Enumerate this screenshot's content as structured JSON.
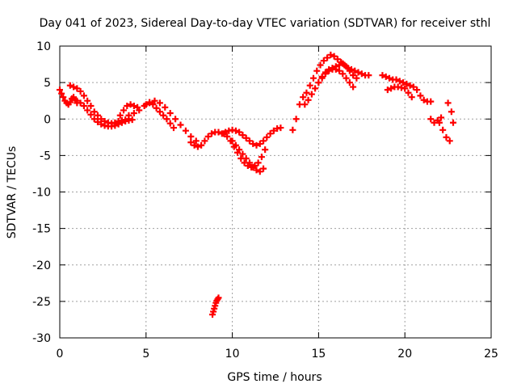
{
  "chart_data": {
    "type": "scatter",
    "title": "Day 041 of 2023, Sidereal Day-to-day VTEC variation (SDTVAR) for receiver sthl",
    "xlabel": "GPS time / hours",
    "ylabel": "SDTVAR / TECUs",
    "xlim": [
      0,
      25
    ],
    "ylim": [
      -30,
      10
    ],
    "xticks": [
      0,
      5,
      10,
      15,
      20,
      25
    ],
    "yticks": [
      -30,
      -25,
      -20,
      -15,
      -10,
      -5,
      0,
      5,
      10
    ],
    "grid": true,
    "marker": "+",
    "series_color": "#ff0000",
    "series": [
      {
        "name": "SDTVAR",
        "x": [
          0.0,
          0.1,
          0.2,
          0.3,
          0.4,
          0.5,
          0.6,
          0.7,
          0.8,
          0.9,
          1.0,
          0.6,
          0.8,
          1.0,
          1.2,
          1.4,
          1.6,
          1.8,
          2.0,
          2.2,
          2.4,
          2.6,
          2.8,
          3.0,
          3.2,
          3.4,
          3.6,
          3.8,
          4.0,
          1.0,
          1.2,
          1.4,
          1.6,
          1.8,
          2.0,
          2.2,
          2.4,
          2.6,
          2.8,
          3.0,
          3.2,
          3.4,
          3.6,
          3.8,
          4.0,
          4.2,
          3.5,
          3.7,
          3.9,
          4.1,
          4.3,
          4.5,
          4.0,
          4.3,
          4.6,
          4.9,
          5.2,
          5.5,
          5.8,
          6.1,
          6.4,
          6.7,
          7.0,
          7.3,
          7.6,
          7.9,
          5.0,
          5.2,
          5.4,
          5.6,
          5.8,
          6.0,
          6.2,
          6.4,
          6.6,
          7.6,
          7.8,
          8.0,
          8.2,
          8.4,
          8.6,
          8.8,
          9.0,
          9.2,
          9.4,
          9.6,
          9.8,
          10.0,
          10.2,
          10.4,
          10.6,
          10.8,
          11.0,
          11.2,
          11.4,
          11.6,
          11.8,
          12.0,
          12.2,
          12.4,
          12.6,
          12.8,
          9.5,
          9.7,
          9.9,
          10.1,
          10.3,
          10.5,
          10.7,
          10.9,
          11.1,
          11.3,
          11.5,
          11.7,
          11.9,
          10.0,
          10.2,
          10.4,
          10.6,
          10.8,
          11.0,
          11.2,
          11.4,
          11.6,
          11.8,
          8.85,
          8.9,
          8.95,
          9.0,
          9.05,
          9.1,
          9.15,
          9.2,
          13.5,
          13.7,
          13.9,
          14.1,
          14.3,
          14.5,
          14.7,
          14.9,
          15.1,
          15.3,
          15.5,
          15.7,
          15.9,
          16.1,
          16.3,
          16.5,
          16.7,
          16.9,
          17.1,
          17.3,
          17.5,
          17.7,
          17.9,
          14.2,
          14.4,
          14.6,
          14.8,
          15.0,
          15.2,
          15.4,
          15.6,
          15.8,
          16.0,
          16.2,
          16.4,
          16.6,
          16.8,
          17.0,
          17.2,
          15.0,
          15.2,
          15.4,
          15.6,
          15.8,
          16.0,
          16.2,
          16.4,
          16.6,
          16.8,
          17.0,
          18.7,
          18.9,
          19.1,
          19.3,
          19.5,
          19.7,
          19.9,
          20.1,
          20.3,
          20.5,
          20.7,
          20.9,
          21.1,
          21.3,
          21.5,
          19.0,
          19.2,
          19.4,
          19.6,
          19.8,
          20.0,
          20.2,
          20.4,
          21.5,
          21.7,
          21.9,
          22.1,
          22.0,
          22.2,
          22.4,
          22.6,
          22.8,
          22.5,
          22.7
        ],
        "y": [
          4.0,
          3.5,
          3.0,
          2.5,
          2.2,
          2.0,
          2.3,
          2.8,
          3.0,
          2.6,
          2.2,
          4.6,
          4.4,
          4.2,
          3.8,
          3.2,
          2.5,
          1.8,
          1.0,
          0.5,
          0.0,
          -0.3,
          -0.5,
          -0.6,
          -0.5,
          -0.3,
          -0.2,
          -0.1,
          0.0,
          2.5,
          2.2,
          1.8,
          1.2,
          0.6,
          0.0,
          -0.4,
          -0.7,
          -0.9,
          -1.0,
          -1.0,
          -0.9,
          -0.7,
          -0.5,
          -0.3,
          -0.2,
          -0.1,
          0.5,
          1.2,
          1.8,
          2.0,
          1.8,
          1.6,
          0.5,
          0.8,
          1.2,
          1.8,
          2.3,
          2.5,
          2.2,
          1.6,
          0.8,
          0.0,
          -0.8,
          -1.6,
          -2.4,
          -3.0,
          2.0,
          2.2,
          2.0,
          1.5,
          1.0,
          0.5,
          0.0,
          -0.6,
          -1.2,
          -3.2,
          -3.6,
          -3.8,
          -3.6,
          -3.0,
          -2.4,
          -2.0,
          -1.8,
          -1.8,
          -2.0,
          -1.8,
          -1.6,
          -1.5,
          -1.6,
          -1.8,
          -2.2,
          -2.6,
          -3.0,
          -3.4,
          -3.6,
          -3.4,
          -3.0,
          -2.5,
          -2.0,
          -1.6,
          -1.3,
          -1.2,
          -2.0,
          -2.4,
          -3.0,
          -3.8,
          -4.6,
          -5.4,
          -6.0,
          -6.4,
          -6.6,
          -6.4,
          -6.0,
          -5.2,
          -4.2,
          -3.0,
          -3.6,
          -4.2,
          -4.8,
          -5.4,
          -6.0,
          -6.6,
          -7.0,
          -7.2,
          -6.8,
          -26.8,
          -26.4,
          -26.0,
          -25.6,
          -25.2,
          -24.9,
          -24.7,
          -24.5,
          -1.5,
          0.0,
          2.0,
          3.0,
          3.6,
          4.6,
          5.6,
          6.6,
          7.4,
          8.0,
          8.4,
          8.8,
          8.6,
          8.2,
          7.8,
          7.4,
          7.0,
          6.8,
          6.6,
          6.4,
          6.2,
          6.0,
          6.0,
          2.0,
          2.6,
          3.4,
          4.2,
          5.0,
          5.8,
          6.4,
          6.8,
          7.0,
          7.2,
          7.4,
          7.6,
          7.2,
          6.6,
          6.0,
          5.6,
          5.0,
          5.6,
          6.2,
          6.6,
          6.8,
          6.8,
          6.6,
          6.2,
          5.6,
          5.0,
          4.4,
          6.0,
          5.8,
          5.6,
          5.4,
          5.4,
          5.2,
          5.0,
          4.8,
          4.6,
          4.4,
          4.0,
          3.2,
          2.6,
          2.4,
          2.4,
          4.0,
          4.2,
          4.4,
          4.4,
          4.3,
          4.2,
          3.6,
          3.0,
          0.0,
          -0.5,
          -0.2,
          0.2,
          -0.5,
          -1.5,
          -2.5,
          -3.0,
          -0.5,
          2.2,
          1.0
        ]
      }
    ]
  }
}
